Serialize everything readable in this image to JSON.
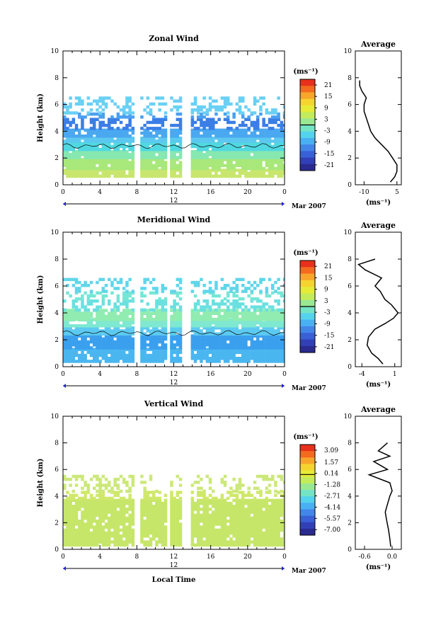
{
  "figure": {
    "date_label": "Mar 2007",
    "day_label": "12",
    "xlabel": "Local Time",
    "colorbar_unit": "(ms⁻¹)",
    "average_xlabel": "(ms⁻¹)",
    "average_title": "Average"
  },
  "chart_data": [
    {
      "type": "heatmap",
      "title": "Zonal Wind",
      "ylabel": "Height (km)",
      "xlim": [
        0,
        24
      ],
      "ylim": [
        0,
        10
      ],
      "xticks": [
        "0",
        "4",
        "8",
        "12",
        "16",
        "20",
        "0"
      ],
      "yticks": [
        "0",
        "2",
        "4",
        "6",
        "8",
        "10"
      ],
      "colorbar_ticks": [
        "21",
        "15",
        "9",
        "3",
        "-3",
        "-9",
        "-15",
        "-21"
      ],
      "colorbar_range": [
        -24,
        24
      ],
      "layers": [
        {
          "y": [
            0.6,
            1.2
          ],
          "value": 9,
          "color": "#c8e66e"
        },
        {
          "y": [
            1.2,
            2.0
          ],
          "value": 5,
          "color": "#a8e87a"
        },
        {
          "y": [
            2.0,
            2.6
          ],
          "value": 1,
          "color": "#86e8b0"
        },
        {
          "y": [
            2.6,
            3.2
          ],
          "value": -4,
          "color": "#50d8e0"
        },
        {
          "y": [
            3.2,
            3.6
          ],
          "value": -6,
          "color": "#5cc8f0"
        },
        {
          "y": [
            3.6,
            4.2
          ],
          "value": -9,
          "color": "#4aa8f0"
        },
        {
          "y": [
            4.2,
            5.0
          ],
          "value": -15,
          "color": "#3a7ee6"
        },
        {
          "y": [
            5.0,
            5.4
          ],
          "value": -10,
          "color": "#4aa0f0"
        },
        {
          "y": [
            5.4,
            6.6
          ],
          "value": -6,
          "color": "#6ad0f4"
        }
      ],
      "average": {
        "xlim": [
          -14,
          7
        ],
        "xticks": [
          "-10",
          "5"
        ],
        "xtick_values": [
          -10,
          5
        ],
        "profile_x": [
          2,
          4,
          5,
          5,
          3,
          1,
          -2,
          -5,
          -7,
          -8,
          -9,
          -10,
          -10,
          -9,
          -11,
          -12,
          -12
        ],
        "profile_y": [
          0.2,
          0.6,
          1.0,
          1.5,
          2.0,
          2.5,
          3.0,
          3.5,
          4.0,
          4.5,
          5.0,
          5.5,
          6.0,
          6.5,
          7.0,
          7.4,
          7.8
        ]
      }
    },
    {
      "type": "heatmap",
      "title": "Meridional Wind",
      "ylabel": "Height (km)",
      "xlim": [
        0,
        24
      ],
      "ylim": [
        0,
        10
      ],
      "xticks": [
        "0",
        "4",
        "8",
        "12",
        "16",
        "20",
        "0"
      ],
      "yticks": [
        "0",
        "2",
        "4",
        "6",
        "8",
        "10"
      ],
      "colorbar_ticks": [
        "21",
        "15",
        "9",
        "3",
        "-3",
        "-9",
        "-15",
        "-21"
      ],
      "colorbar_range": [
        -24,
        24
      ],
      "layers": [
        {
          "y": [
            0.4,
            1.4
          ],
          "value": -8,
          "color": "#4ab6f0"
        },
        {
          "y": [
            1.4,
            2.4
          ],
          "value": -10,
          "color": "#3aa0ee"
        },
        {
          "y": [
            2.4,
            3.0
          ],
          "value": -6,
          "color": "#5ccaf0"
        },
        {
          "y": [
            3.0,
            3.6
          ],
          "value": -1,
          "color": "#7ee8d0"
        },
        {
          "y": [
            3.6,
            4.3
          ],
          "value": 2,
          "color": "#90ecb0"
        },
        {
          "y": [
            4.3,
            5.0
          ],
          "value": -3,
          "color": "#6ae0e0"
        },
        {
          "y": [
            5.0,
            5.6
          ],
          "value": -2,
          "color": "#76e6d6"
        },
        {
          "y": [
            5.6,
            6.6
          ],
          "value": -4,
          "color": "#60d6ea"
        }
      ],
      "average": {
        "xlim": [
          -5,
          2
        ],
        "xticks": [
          "-4",
          "1"
        ],
        "xtick_values": [
          -4,
          1
        ],
        "profile_x": [
          -0.8,
          -1.5,
          -2.5,
          -3.2,
          -3.0,
          -2.0,
          -0.5,
          0.8,
          1.5,
          0.5,
          -0.5,
          -1.2,
          -2.0,
          -1.0,
          -3.5,
          -4.5,
          -2.0
        ],
        "profile_y": [
          0.2,
          0.6,
          1.0,
          1.6,
          2.2,
          2.8,
          3.2,
          3.6,
          4.0,
          4.6,
          5.0,
          5.6,
          6.0,
          6.6,
          7.2,
          7.6,
          8.0
        ]
      }
    },
    {
      "type": "heatmap",
      "title": "Vertical Wind",
      "ylabel": "Height (km)",
      "xlim": [
        0,
        24
      ],
      "ylim": [
        0,
        10
      ],
      "xticks": [
        "0",
        "4",
        "8",
        "12",
        "16",
        "20",
        "0"
      ],
      "yticks": [
        "0",
        "2",
        "4",
        "6",
        "8",
        "10"
      ],
      "colorbar_ticks": [
        "3.09",
        "1.57",
        "0.14",
        "-1.28",
        "-2.71",
        "-4.14",
        "-5.57",
        "-7.00"
      ],
      "colorbar_range": [
        -7.7,
        3.8
      ],
      "layers": [
        {
          "y": [
            0.4,
            3.8
          ],
          "value": 0.5,
          "color": "#c6e66a"
        },
        {
          "y": [
            3.8,
            4.4
          ],
          "value": 0.6,
          "color": "#d0e86a"
        },
        {
          "y": [
            4.4,
            5.6
          ],
          "value": 0.4,
          "color": "#cce87a"
        }
      ],
      "average": {
        "xlim": [
          -0.8,
          0.2
        ],
        "xticks": [
          "-0.6",
          "0.0"
        ],
        "xtick_values": [
          -0.6,
          0.0
        ],
        "profile_x": [
          -0.03,
          -0.05,
          -0.08,
          -0.12,
          -0.15,
          -0.1,
          -0.05,
          0.0,
          -0.05,
          -0.5,
          -0.1,
          -0.4,
          -0.05,
          -0.3,
          -0.1
        ],
        "profile_y": [
          0.2,
          0.8,
          1.5,
          2.2,
          2.8,
          3.4,
          4.0,
          4.4,
          5.0,
          5.6,
          6.0,
          6.6,
          7.0,
          7.4,
          8.0
        ]
      }
    }
  ],
  "colors": {
    "colorbar": [
      "#e8301c",
      "#f46a1e",
      "#f8a62a",
      "#f6d42e",
      "#e6ec36",
      "#c4ec5a",
      "#9ae892",
      "#74e4c4",
      "#54d4ec",
      "#4ab0f4",
      "#4286ea",
      "#3a60d8",
      "#3240b8",
      "#2a2a90"
    ]
  }
}
